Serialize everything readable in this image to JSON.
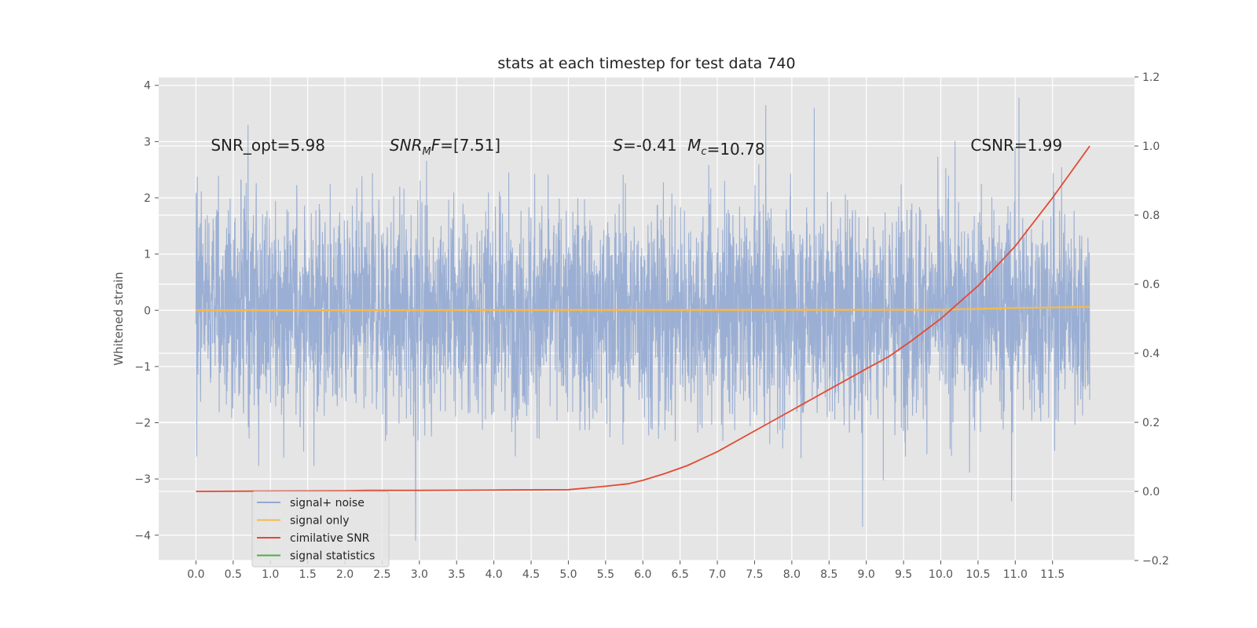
{
  "chart_data": {
    "type": "line",
    "title": "stats at each timestep for test data 740",
    "ylabel": "Whitened strain",
    "ylabel_right": "",
    "xlabel": "",
    "xlim": [
      -0.5,
      12.6
    ],
    "ylim": [
      -4.45,
      4.15
    ],
    "ylim_right": [
      -0.2,
      1.2
    ],
    "x_ticks": [
      "0.0",
      "0.5",
      "1.0",
      "1.5",
      "2.0",
      "2.5",
      "3.0",
      "3.5",
      "4.0",
      "4.5",
      "5.0",
      "5.5",
      "6.0",
      "6.5",
      "7.0",
      "7.5",
      "8.0",
      "8.5",
      "9.0",
      "9.5",
      "10.0",
      "10.5",
      "11.0",
      "11.5"
    ],
    "y_ticks": [
      "−4",
      "−3",
      "−2",
      "−1",
      "0",
      "1",
      "2",
      "3",
      "4"
    ],
    "y_ticks_right": [
      "−0.2",
      "0.0",
      "0.2",
      "0.4",
      "0.6",
      "0.8",
      "1.0",
      "1.2"
    ],
    "grid": true,
    "legend_position": "lower-left",
    "annotations": [
      {
        "text": "SNR_opt=5.98",
        "x": 0.2,
        "y": 2.95
      },
      {
        "text": "SNR_MF=[7.51]",
        "x": 2.6,
        "y": 2.95
      },
      {
        "text": "S=-0.41",
        "x": 5.6,
        "y": 2.95
      },
      {
        "text": "M_c=10.78",
        "x": 6.6,
        "y": 2.95
      },
      {
        "text": "CSNR=1.99",
        "x": 10.4,
        "y": 2.95
      }
    ],
    "series": [
      {
        "name": "signal+ noise",
        "axis": "left",
        "color": "#92a8d1",
        "x_range": [
          0,
          12
        ],
        "amplitude_range": [
          -4.1,
          3.8
        ],
        "extremes": [
          {
            "x": 2.95,
            "y": -4.1
          },
          {
            "x": 8.95,
            "y": -3.85
          },
          {
            "x": 10.95,
            "y": -3.4
          },
          {
            "x": 7.65,
            "y": 3.65
          },
          {
            "x": 8.3,
            "y": 3.6
          },
          {
            "x": 11.05,
            "y": 3.78
          },
          {
            "x": 0.7,
            "y": 3.3
          },
          {
            "x": 6.0,
            "y": -1.1
          }
        ]
      },
      {
        "name": "signal only",
        "axis": "left",
        "color": "#f5b94f",
        "x": [
          0,
          10.0,
          11.0,
          12.0
        ],
        "y": [
          0,
          0.01,
          0.04,
          0.06
        ]
      },
      {
        "name": "cimilative SNR",
        "axis": "right",
        "color": "#e24a33",
        "x": [
          0,
          1,
          2,
          2.3,
          3,
          4,
          5,
          5.5,
          5.8,
          6.0,
          6.3,
          6.6,
          7.0,
          7.5,
          8.0,
          8.5,
          9.0,
          9.3,
          9.6,
          10.0,
          10.5,
          11.0,
          11.5,
          12.0
        ],
        "y": [
          0.0,
          0.001,
          0.002,
          0.003,
          0.003,
          0.004,
          0.005,
          0.015,
          0.022,
          0.032,
          0.052,
          0.075,
          0.115,
          0.175,
          0.235,
          0.295,
          0.355,
          0.39,
          0.435,
          0.5,
          0.595,
          0.71,
          0.85,
          1.0
        ]
      },
      {
        "name": "signal statistics",
        "axis": "right",
        "color": "#4daf4a",
        "x": [],
        "y": []
      }
    ]
  }
}
